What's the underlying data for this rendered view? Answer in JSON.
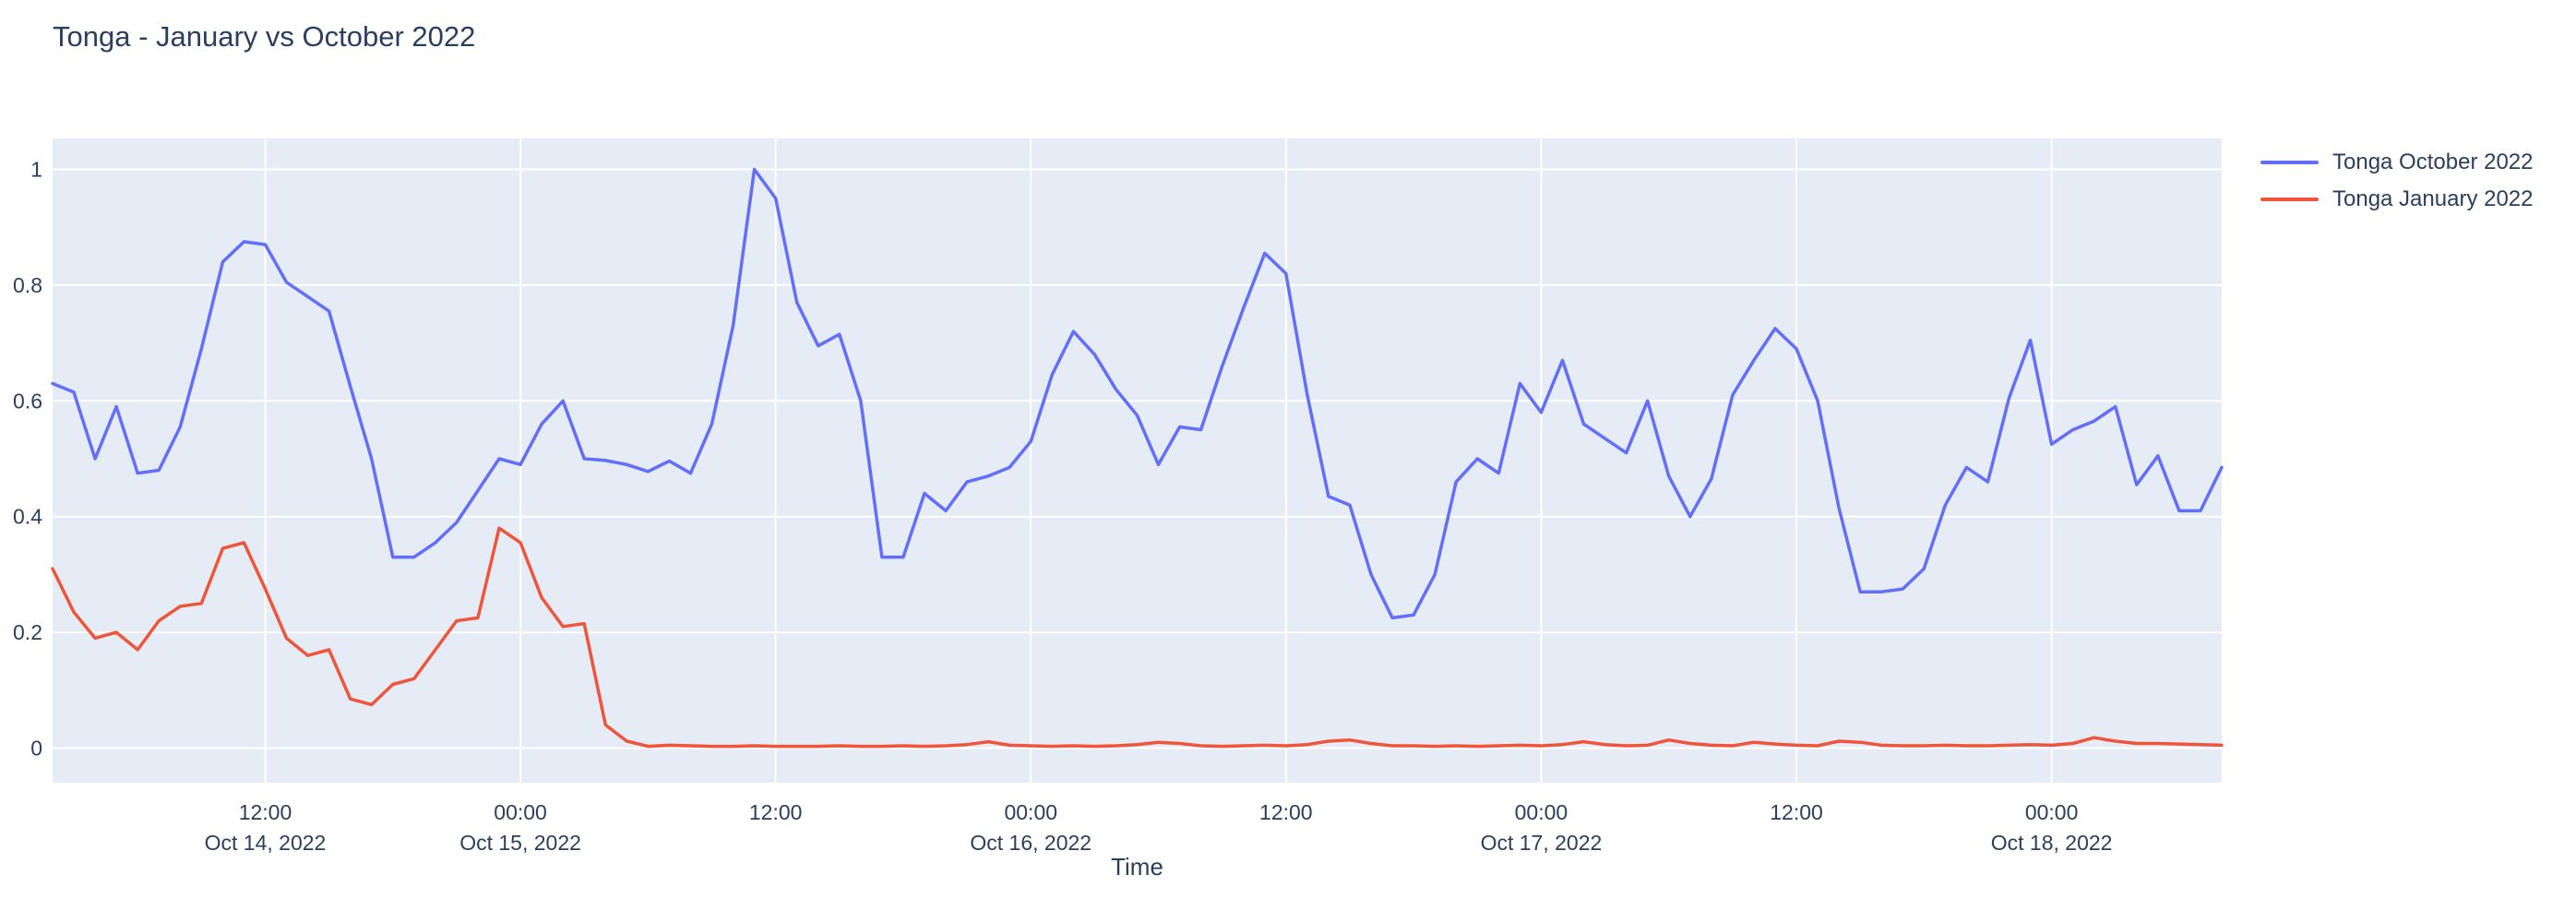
{
  "title": "Tonga - January vs October 2022",
  "x_axis_title": "Time",
  "legend": {
    "items": [
      {
        "label": "Tonga October 2022",
        "color": "#636efa"
      },
      {
        "label": "Tonga January 2022",
        "color": "#ef553b"
      }
    ]
  },
  "chart_data": {
    "type": "line",
    "title": "Tonga - January vs October 2022",
    "xlabel": "Time",
    "ylabel": "",
    "legend_position": "right",
    "grid": true,
    "colors": {
      "plot_bg": "#e5ecf6",
      "grid": "#ffffff",
      "text": "#2a3f5f"
    },
    "ylim": [
      -0.06,
      1.055
    ],
    "y_ticks": [
      0,
      0.2,
      0.4,
      0.6,
      0.8,
      1
    ],
    "y_tick_labels": [
      "0",
      "0.2",
      "0.4",
      "0.6",
      "0.8",
      "1"
    ],
    "x_start": "2022-10-14 02:00",
    "x_step_hours": 1,
    "x_first_hour_offset": 2,
    "x_last_hour_offset": 104,
    "n_points": 103,
    "x_ticks": [
      {
        "hour_offset": 12,
        "line1": "12:00",
        "line2": "Oct 14, 2022"
      },
      {
        "hour_offset": 24,
        "line1": "00:00",
        "line2": "Oct 15, 2022"
      },
      {
        "hour_offset": 36,
        "line1": "12:00",
        "line2": ""
      },
      {
        "hour_offset": 48,
        "line1": "00:00",
        "line2": "Oct 16, 2022"
      },
      {
        "hour_offset": 60,
        "line1": "12:00",
        "line2": ""
      },
      {
        "hour_offset": 72,
        "line1": "00:00",
        "line2": "Oct 17, 2022"
      },
      {
        "hour_offset": 84,
        "line1": "12:00",
        "line2": ""
      },
      {
        "hour_offset": 96,
        "line1": "00:00",
        "line2": "Oct 18, 2022"
      }
    ],
    "series": [
      {
        "name": "Tonga October 2022",
        "color": "#636efa",
        "values": [
          0.63,
          0.615,
          0.5,
          0.59,
          0.475,
          0.48,
          0.555,
          0.69,
          0.84,
          0.875,
          0.87,
          0.805,
          0.78,
          0.755,
          0.625,
          0.5,
          0.33,
          0.33,
          0.355,
          0.39,
          0.445,
          0.5,
          0.49,
          0.56,
          0.6,
          0.5,
          0.497,
          0.49,
          0.478,
          0.496,
          0.475,
          0.56,
          0.73,
          1.0,
          0.95,
          0.77,
          0.695,
          0.715,
          0.6,
          0.33,
          0.33,
          0.44,
          0.41,
          0.46,
          0.47,
          0.485,
          0.53,
          0.645,
          0.72,
          0.68,
          0.62,
          0.575,
          0.49,
          0.555,
          0.55,
          0.66,
          0.76,
          0.855,
          0.82,
          0.61,
          0.435,
          0.42,
          0.3,
          0.225,
          0.23,
          0.3,
          0.46,
          0.5,
          0.475,
          0.63,
          0.58,
          0.67,
          0.56,
          0.535,
          0.51,
          0.6,
          0.47,
          0.4,
          0.465,
          0.61,
          0.67,
          0.725,
          0.69,
          0.6,
          0.415,
          0.27,
          0.27,
          0.275,
          0.31,
          0.42,
          0.485,
          0.46,
          0.605,
          0.705,
          0.525,
          0.55,
          0.565,
          0.59,
          0.455,
          0.505,
          0.41,
          0.41,
          0.485
        ]
      },
      {
        "name": "Tonga January 2022",
        "color": "#ef553b",
        "values": [
          0.31,
          0.235,
          0.19,
          0.2,
          0.17,
          0.22,
          0.245,
          0.25,
          0.345,
          0.355,
          0.275,
          0.19,
          0.16,
          0.17,
          0.085,
          0.075,
          0.11,
          0.12,
          0.17,
          0.22,
          0.225,
          0.38,
          0.355,
          0.26,
          0.21,
          0.215,
          0.04,
          0.012,
          0.003,
          0.005,
          0.004,
          0.003,
          0.003,
          0.004,
          0.003,
          0.003,
          0.003,
          0.004,
          0.003,
          0.003,
          0.004,
          0.003,
          0.004,
          0.006,
          0.011,
          0.005,
          0.004,
          0.003,
          0.004,
          0.003,
          0.004,
          0.006,
          0.01,
          0.008,
          0.004,
          0.003,
          0.004,
          0.005,
          0.004,
          0.006,
          0.012,
          0.014,
          0.008,
          0.004,
          0.004,
          0.003,
          0.004,
          0.003,
          0.004,
          0.005,
          0.004,
          0.006,
          0.011,
          0.006,
          0.004,
          0.005,
          0.014,
          0.008,
          0.005,
          0.004,
          0.01,
          0.007,
          0.005,
          0.004,
          0.012,
          0.01,
          0.005,
          0.004,
          0.004,
          0.005,
          0.004,
          0.004,
          0.005,
          0.006,
          0.005,
          0.008,
          0.018,
          0.012,
          0.008,
          0.008,
          0.007,
          0.006,
          0.005
        ]
      }
    ]
  }
}
